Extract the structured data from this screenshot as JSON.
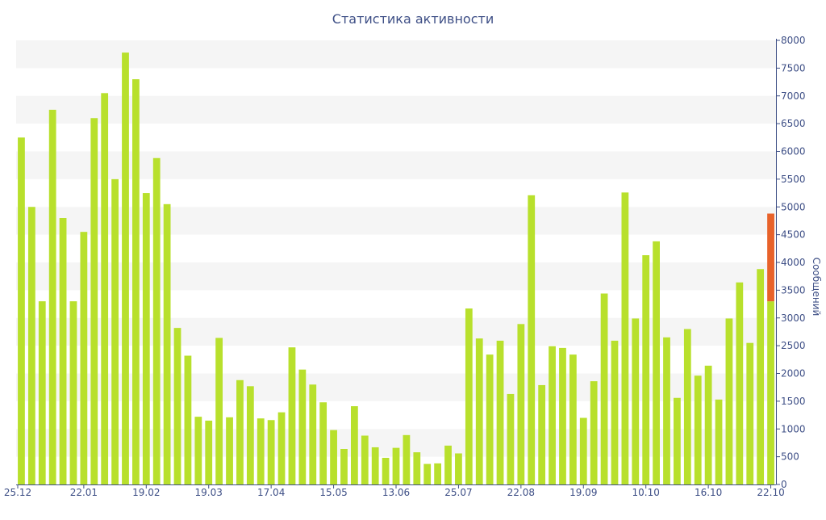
{
  "chart_data": {
    "type": "bar",
    "title": "Статистика активности",
    "xlabel": "",
    "ylabel": "Сообщений",
    "ylim": [
      0,
      8000
    ],
    "y_ticks": [
      0,
      500,
      1000,
      1500,
      2000,
      2500,
      3000,
      3500,
      4000,
      4500,
      5000,
      5500,
      6000,
      6500,
      7000,
      7500,
      8000
    ],
    "x_tick_labels": [
      "25.12",
      "22.01",
      "19.02",
      "19.03",
      "17.04",
      "15.05",
      "13.06",
      "25.07",
      "22.08",
      "19.09",
      "10.10",
      "16.10",
      "22.10"
    ],
    "x_tick_bar_index": [
      0,
      6,
      12,
      18,
      24,
      30,
      36,
      42,
      48,
      54,
      60,
      66,
      72
    ],
    "grid": "horizontal alternating bands",
    "legend": "none",
    "colors": {
      "bar": "#b8e02c",
      "highlight": "#e8622a",
      "axis": "#3e4f86",
      "band": "#f5f5f5"
    },
    "values": [
      6250,
      5000,
      3300,
      6750,
      4800,
      3300,
      4550,
      6600,
      7050,
      5500,
      7780,
      7300,
      5250,
      5880,
      5050,
      2820,
      2320,
      1220,
      1150,
      2640,
      1210,
      1880,
      1770,
      1190,
      1160,
      1300,
      2470,
      2070,
      1800,
      1480,
      980,
      640,
      1410,
      880,
      670,
      480,
      660,
      890,
      580,
      370,
      380,
      700,
      560,
      3170,
      2630,
      2340,
      2590,
      1630,
      2890,
      5210,
      1790,
      2490,
      2460,
      2340,
      1200,
      1860,
      3440,
      2590,
      5260,
      2990,
      4130,
      4380,
      2650,
      1560,
      2800,
      1960,
      2140,
      1530,
      2990,
      3640,
      2550,
      3880,
      3300
    ],
    "highlight_top": 4880
  }
}
